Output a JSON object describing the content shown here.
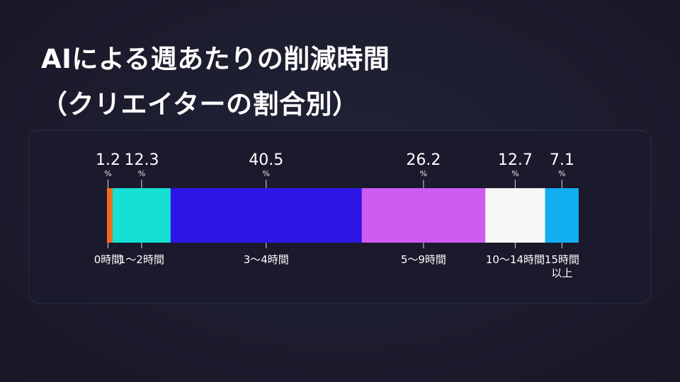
{
  "title": {
    "line1": "AIによる週あたりの削減時間",
    "line2": "（クリエイターの割合別）"
  },
  "chart_data": {
    "type": "bar",
    "stacked": true,
    "orientation": "horizontal",
    "unit": "%",
    "categories": [
      "0時間",
      "1〜2時間",
      "3〜4時間",
      "5〜9時間",
      "10〜14時間",
      "15時間以上"
    ],
    "values": [
      1.2,
      12.3,
      40.5,
      26.2,
      12.7,
      7.1
    ],
    "colors": [
      "#f26b1d",
      "#16e0d4",
      "#2c17e6",
      "#cf5cf2",
      "#f7f7f7",
      "#11aef2"
    ]
  }
}
